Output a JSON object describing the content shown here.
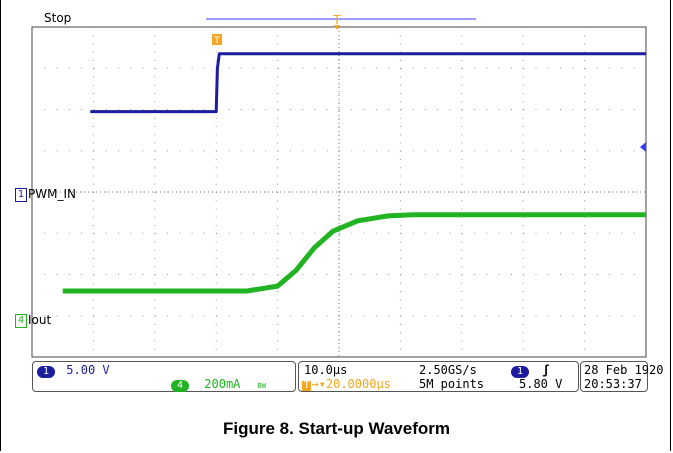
{
  "scope": {
    "status": "Stop",
    "trigger_marker": "T",
    "colors": {
      "ch1": "#1b1c9e",
      "ch4": "#21b321",
      "trigger": "#f5a623",
      "grid": "#9a9a9a"
    }
  },
  "chart_data": {
    "type": "line",
    "title": "Figure 8. Start-up Waveform",
    "x_divisions": 10,
    "y_divisions": 8,
    "series": [
      {
        "name": "PWM_IN",
        "channel": "1",
        "x_div": [
          0.95,
          3.0,
          3.02,
          3.05,
          3.1,
          10
        ],
        "y_div": [
          5.95,
          5.95,
          7.0,
          7.35,
          7.35,
          7.35
        ]
      },
      {
        "name": "Iout",
        "channel": "4",
        "x_div": [
          0.5,
          3.5,
          4.0,
          4.3,
          4.6,
          4.9,
          5.3,
          5.8,
          6.2,
          10
        ],
        "y_div": [
          1.6,
          1.6,
          1.72,
          2.1,
          2.65,
          3.05,
          3.3,
          3.42,
          3.45,
          3.45
        ]
      }
    ]
  },
  "status": {
    "ch1_num": "1",
    "ch1_scale": "5.00 V",
    "ch4_num": "4",
    "ch4_scale": "200mA",
    "ch4_bw": "BW",
    "timebase": "10.0µs",
    "sample_rate": "2.50GS/s",
    "trig_pos": "→▾20.0000µs",
    "record_len": "5M points",
    "trig_src": "1",
    "trig_slope": "ʃ",
    "trig_level": "5.80 V",
    "date": "28 Feb  1920",
    "time": "20:53:37"
  }
}
